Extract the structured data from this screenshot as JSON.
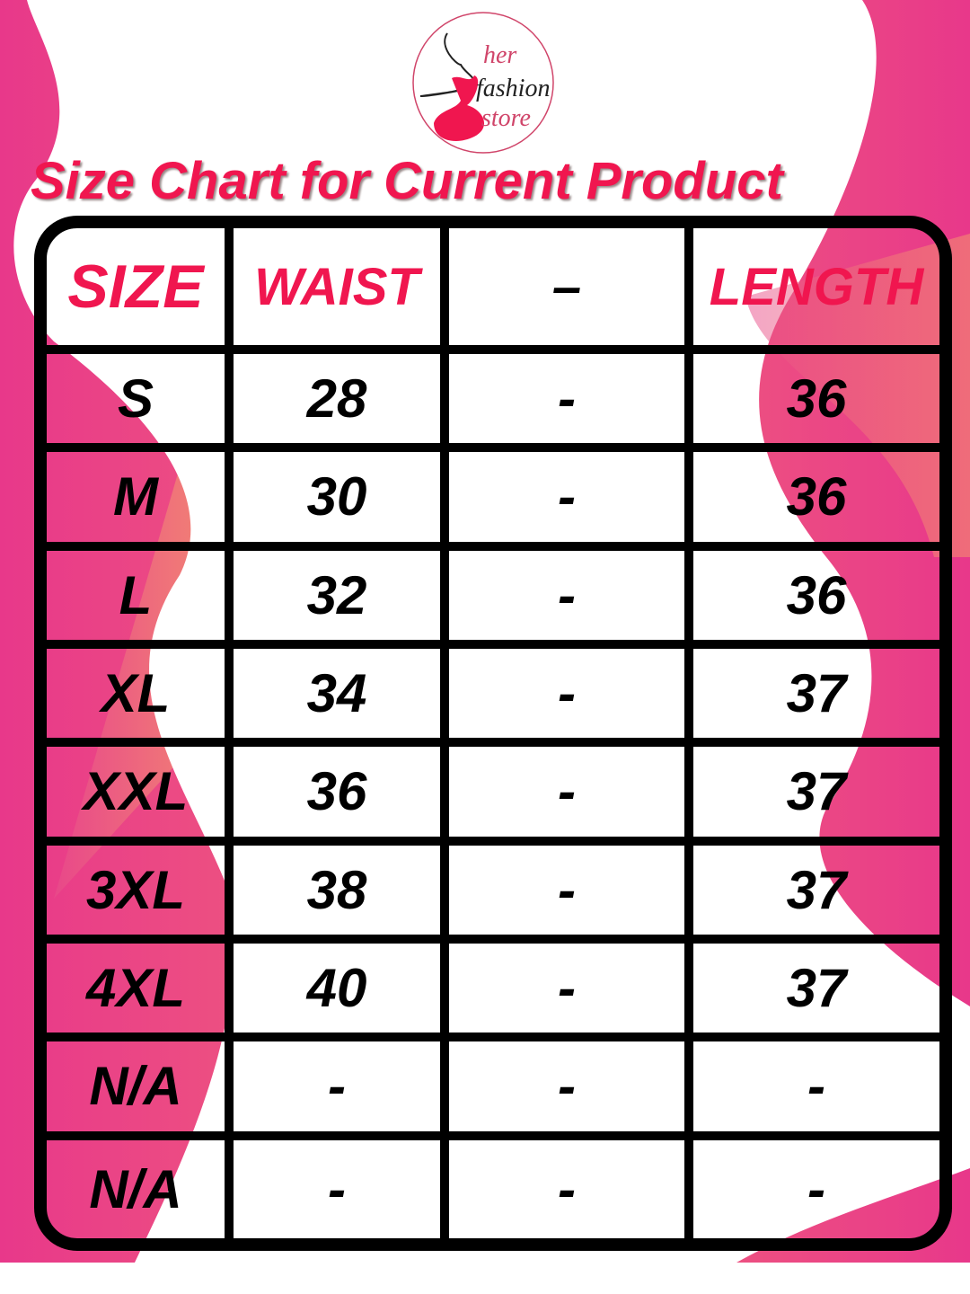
{
  "brand": {
    "logo_text": "her fashion store"
  },
  "title": "Size Chart for Current Product",
  "colors": {
    "accent": "#f0164f",
    "background_pink": "#e8388a",
    "background_orange": "#f6a06a"
  },
  "table": {
    "headers": [
      "SIZE",
      "WAIST",
      "–",
      "LENGTH"
    ],
    "rows": [
      [
        "S",
        "28",
        "-",
        "36"
      ],
      [
        "M",
        "30",
        "-",
        "36"
      ],
      [
        "L",
        "32",
        "-",
        "36"
      ],
      [
        "XL",
        "34",
        "-",
        "37"
      ],
      [
        "XXL",
        "36",
        "-",
        "37"
      ],
      [
        "3XL",
        "38",
        "-",
        "37"
      ],
      [
        "4XL",
        "40",
        "-",
        "37"
      ],
      [
        "N/A",
        "-",
        "-",
        "-"
      ],
      [
        "N/A",
        "-",
        "-",
        "-"
      ]
    ]
  }
}
